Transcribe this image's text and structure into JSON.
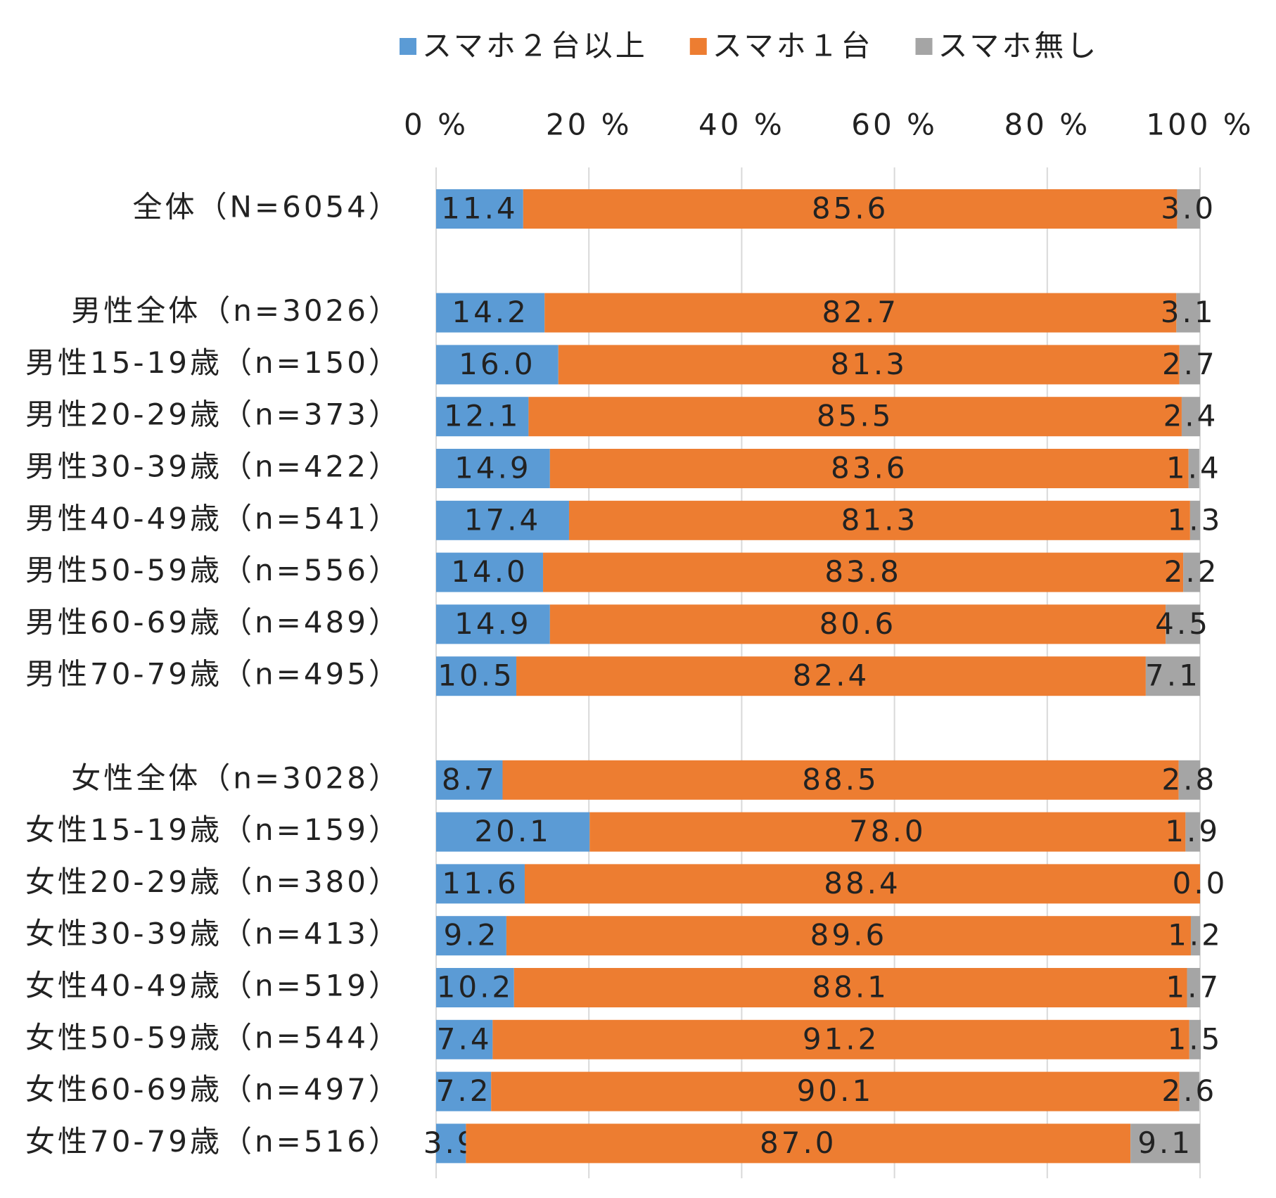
{
  "chart_data": {
    "type": "stacked-barh",
    "categories": [
      "全体（N=6054）",
      null,
      "男性全体（n=3026）",
      "男性15-19歳（n=150）",
      "男性20-29歳（n=373）",
      "男性30-39歳（n=422）",
      "男性40-49歳（n=541）",
      "男性50-59歳（n=556）",
      "男性60-69歳（n=489）",
      "男性70-79歳（n=495）",
      null,
      "女性全体（n=3028）",
      "女性15-19歳（n=159）",
      "女性20-29歳（n=380）",
      "女性30-39歳（n=413）",
      "女性40-49歳（n=519）",
      "女性50-59歳（n=544）",
      "女性60-69歳（n=497）",
      "女性70-79歳（n=516）"
    ],
    "series": [
      {
        "name": "スマホ２台以上",
        "color": "#5b9bd5",
        "values": [
          11.4,
          null,
          14.2,
          16.0,
          12.1,
          14.9,
          17.4,
          14.0,
          14.9,
          10.5,
          null,
          8.7,
          20.1,
          11.6,
          9.2,
          10.2,
          7.4,
          7.2,
          3.9
        ],
        "value_labels": [
          "11.4",
          null,
          "14.2",
          "16.0",
          "12.1",
          "14.9",
          "17.4",
          "14.0",
          "14.9",
          "10.5",
          null,
          "8.7",
          "20.1",
          "11.6",
          "9.2",
          "10.2",
          "7.4",
          "7.2",
          "3.9"
        ]
      },
      {
        "name": "スマホ１台",
        "color": "#ed7d31",
        "values": [
          85.6,
          null,
          82.7,
          81.3,
          85.5,
          83.6,
          81.3,
          83.8,
          80.6,
          82.4,
          null,
          88.5,
          78.0,
          88.4,
          89.6,
          88.1,
          91.2,
          90.1,
          87.0
        ],
        "value_labels": [
          "85.6",
          null,
          "82.7",
          "81.3",
          "85.5",
          "83.6",
          "81.3",
          "83.8",
          "80.6",
          "82.4",
          null,
          "88.5",
          "78.0",
          "88.4",
          "89.6",
          "88.1",
          "91.2",
          "90.1",
          "87.0"
        ]
      },
      {
        "name": "スマホ無し",
        "color": "#a5a5a5",
        "values": [
          3.0,
          null,
          3.1,
          2.7,
          2.4,
          1.4,
          1.3,
          2.2,
          4.5,
          7.1,
          null,
          2.8,
          1.9,
          0.0,
          1.2,
          1.7,
          1.5,
          2.6,
          9.1
        ],
        "value_labels": [
          "3.0",
          null,
          "3.1",
          "2.7",
          "2.4",
          "1.4",
          "1.3",
          "2.2",
          "4.5",
          "7.1",
          null,
          "2.8",
          "1.9",
          "0.0",
          "1.2",
          "1.7",
          "1.5",
          "2.6",
          "9.1"
        ]
      }
    ],
    "xlim": [
      0,
      100
    ],
    "xticks": [
      {
        "value": 0,
        "label": "0 %"
      },
      {
        "value": 20,
        "label": "20 %"
      },
      {
        "value": 40,
        "label": "40 %"
      },
      {
        "value": 60,
        "label": "60 %"
      },
      {
        "value": 80,
        "label": "80 %"
      },
      {
        "value": 100,
        "label": "100 %"
      }
    ],
    "grid": true,
    "legend": "top"
  }
}
